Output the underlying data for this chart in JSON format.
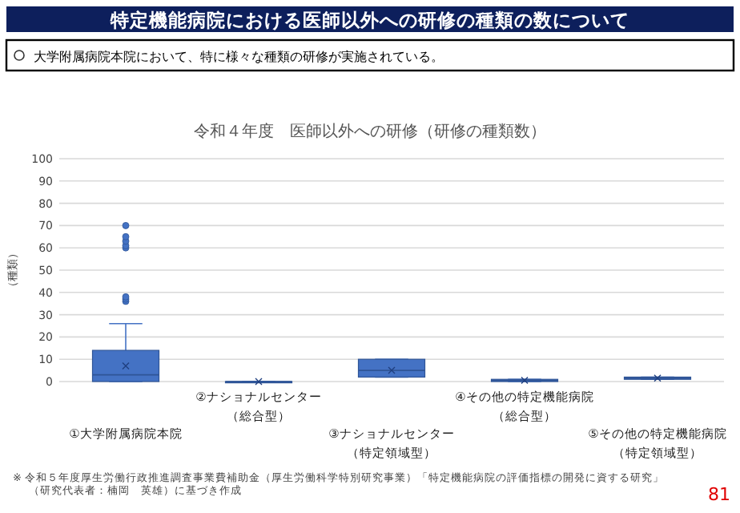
{
  "chart_data": {
    "type": "box",
    "title": "特定機能病院における医師以外への研修の種類の数について",
    "subtitle": "大学附属病院本院において、特に様々な種類の研修が実施されている。",
    "annotations": [
      "令和４年度　医師以外への研修（研修の種類数）",
      "※ 令和５年度厚生労働行政推進調査事業費補助金（厚生労働科学特別研究事業）「特定機能病院の評価指標の開発に資する研究」（研究代表者：楠岡　英雄）に基づき作成",
      "81"
    ],
    "ylabel": "（種類）",
    "categories": [
      "①大学附属病院本院",
      "②ナショナルセンター（総合型）",
      "③ナショナルセンター（特定領域型）",
      "④その他の特定機能病院（総合型）",
      "⑤その他の特定機能病院（特定領域型）"
    ],
    "color": "#4472c4",
    "boxes": [
      {
        "low": 0,
        "q1": 0,
        "median": 3,
        "q3": 14,
        "high": 26,
        "mean": 7,
        "outliers": [
          36,
          37,
          38,
          60,
          61,
          63,
          65,
          70
        ]
      },
      {
        "low": 0,
        "q1": 0,
        "median": 0,
        "q3": 0,
        "high": 0,
        "mean": 0
      },
      {
        "low": 2,
        "q1": 2,
        "median": 5,
        "q3": 10,
        "high": 10,
        "mean": 5
      },
      {
        "low": 0,
        "q1": 0,
        "median": 0.5,
        "q3": 1,
        "high": 1,
        "mean": 0.5
      },
      {
        "low": 1,
        "q1": 1,
        "median": 1.5,
        "q3": 2,
        "high": 2,
        "mean": 1.5
      }
    ],
    "ylim": [
      0,
      100
    ],
    "yticks": [
      0,
      10,
      20,
      30,
      40,
      50,
      60,
      70,
      80,
      90,
      100
    ],
    "grid": "y"
  }
}
